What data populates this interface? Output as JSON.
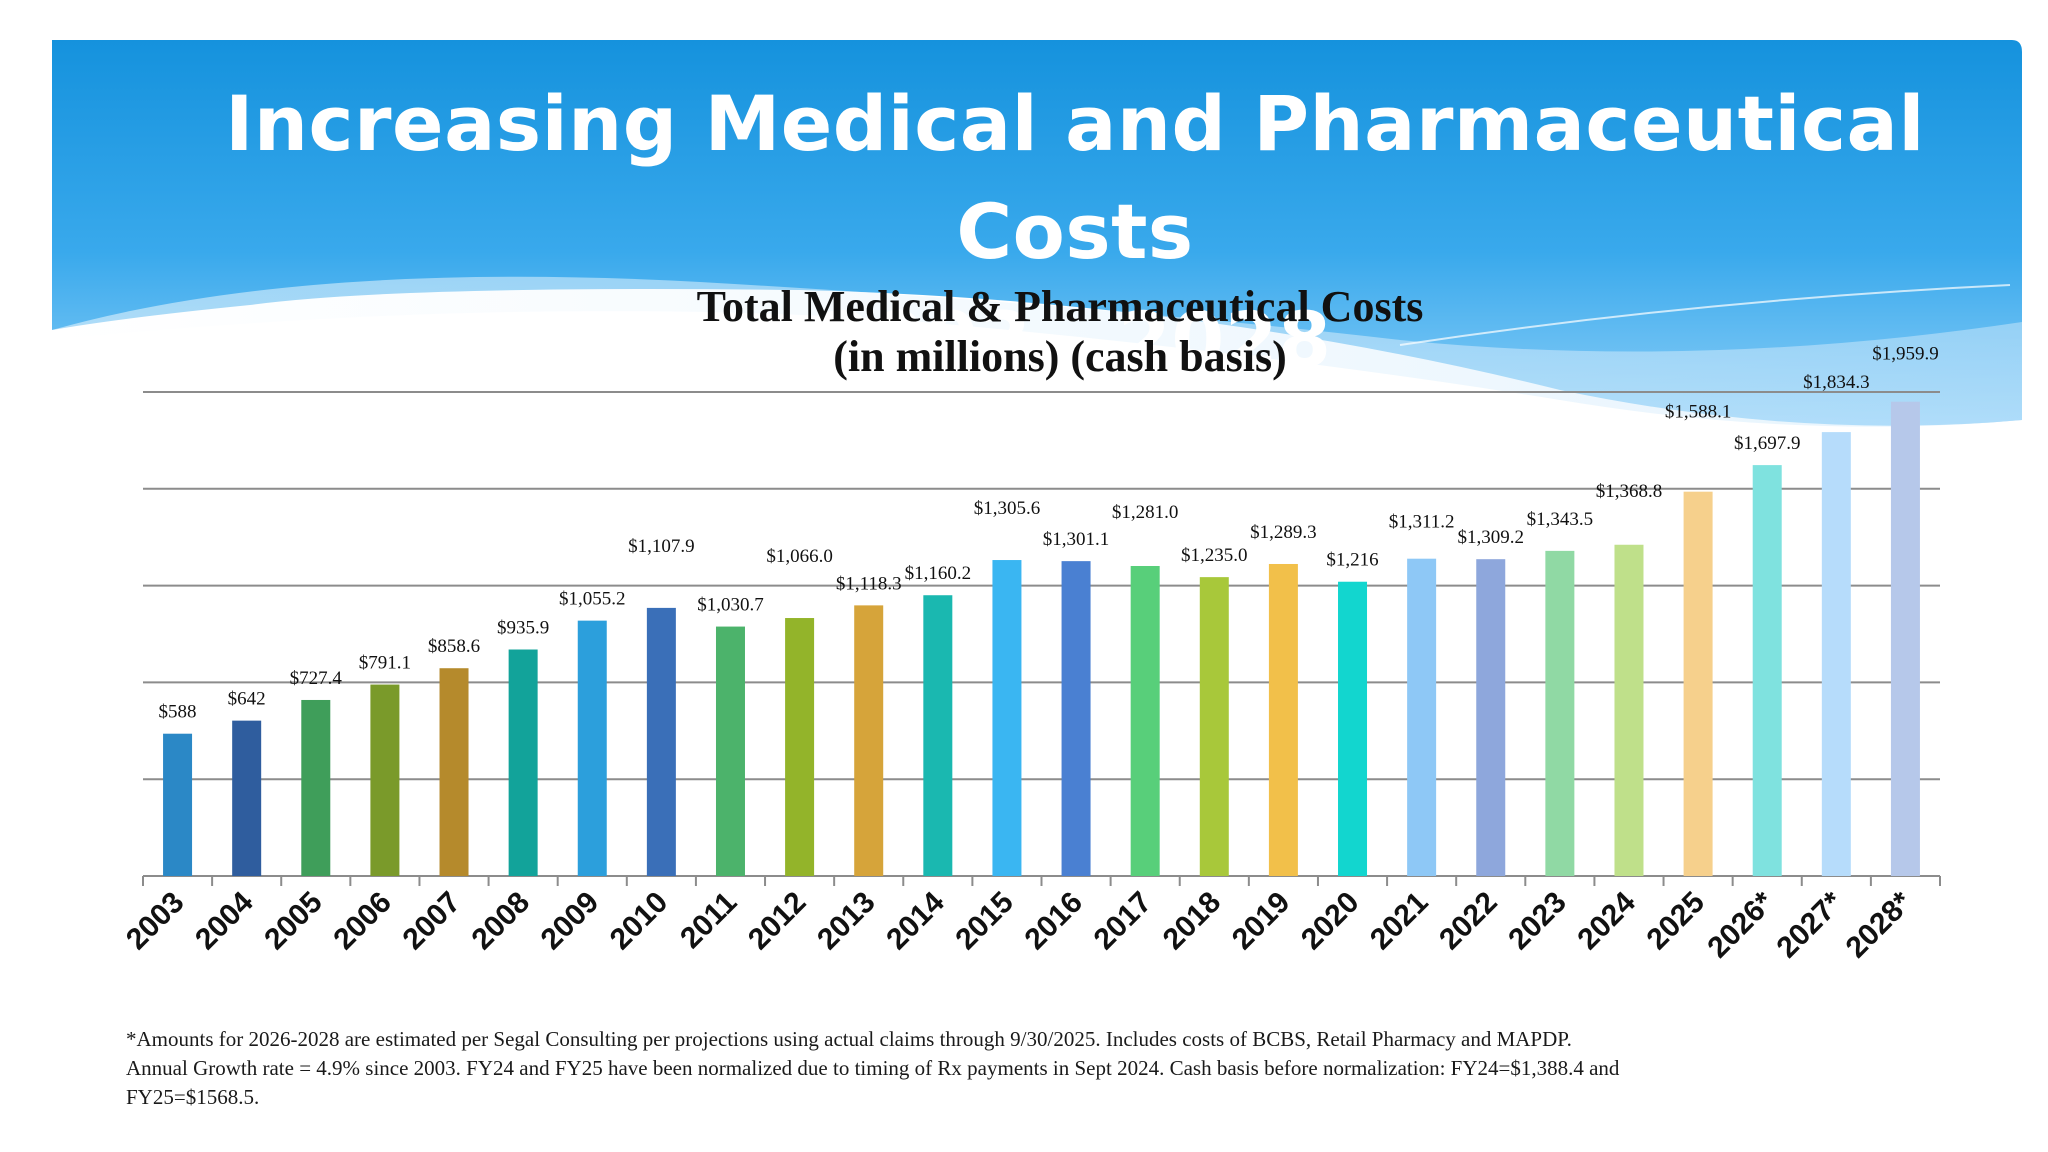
{
  "slide": {
    "title_line1": "Increasing Medical and Pharmaceutical Costs",
    "title_line2": "2003 - 2028",
    "banner_color": "#1592dd"
  },
  "footnote": {
    "line1": "*Amounts for 2026-2028 are estimated per Segal Consulting per projections using actual claims through 9/30/2025. Includes costs of BCBS, Retail Pharmacy and MAPDP.",
    "line2": "Annual Growth rate = 4.9% since 2003.   FY24 and FY25 have been normalized due to timing of Rx payments in Sept 2024.  Cash basis before normalization: FY24=$1,388.4 and",
    "line3": "FY25=$1568.5."
  },
  "chart_data": {
    "type": "bar",
    "title": "Total Medical & Pharmaceutical Costs",
    "subtitle": "(in millions) (cash basis)",
    "xlabel": "",
    "ylabel": "",
    "ylim": [
      0,
      2000
    ],
    "grid": true,
    "categories": [
      "2003",
      "2004",
      "2005",
      "2006",
      "2007",
      "2008",
      "2009",
      "2010",
      "2011",
      "2012",
      "2013",
      "2014",
      "2015",
      "2016",
      "2017",
      "2018",
      "2019",
      "2020",
      "2021",
      "2022",
      "2023",
      "2024",
      "2025",
      "2026*",
      "2027*",
      "2028*"
    ],
    "values": [
      588,
      642,
      727.4,
      791.1,
      858.6,
      935.9,
      1055.2,
      1107.9,
      1030.7,
      1066.0,
      1118.3,
      1160.2,
      1305.6,
      1301.1,
      1281.0,
      1235.0,
      1289.3,
      1216,
      1311.2,
      1309.2,
      1343.5,
      1368.8,
      1588.1,
      1697.9,
      1834.3,
      1959.9
    ],
    "data_labels": [
      "$588",
      "$642",
      "$727.4",
      "$791.1",
      "$858.6",
      "$935.9",
      "$1,055.2",
      "$1,107.9",
      "$1,030.7",
      "$1,066.0",
      "$1,118.3",
      "$1,160.2",
      "$1,305.6",
      "$1,301.1",
      "$1,281.0",
      "$1,235.0",
      "$1,289.3",
      "$1,216",
      "$1,311.2",
      "$1,309.2",
      "$1,343.5",
      "$1,368.8",
      "$1,588.1",
      "$1,697.9",
      "$1,834.3",
      "$1,959.9"
    ],
    "colors": [
      "#2b88c6",
      "#2f5d9e",
      "#3f9e5a",
      "#7a9a2a",
      "#b58a2c",
      "#12a39a",
      "#2c9fdc",
      "#3a6fb8",
      "#4cb36b",
      "#93b42a",
      "#d6a43a",
      "#1ab8b0",
      "#3ab6f2",
      "#4a80d2",
      "#58cf7a",
      "#a8c83a",
      "#f2c04a",
      "#12d6cf",
      "#8ec8f6",
      "#8ea7dc",
      "#90d9a4",
      "#bfe08a",
      "#f6d08c",
      "#7fe2df",
      "#b6dcfb",
      "#b6c8ea"
    ]
  }
}
